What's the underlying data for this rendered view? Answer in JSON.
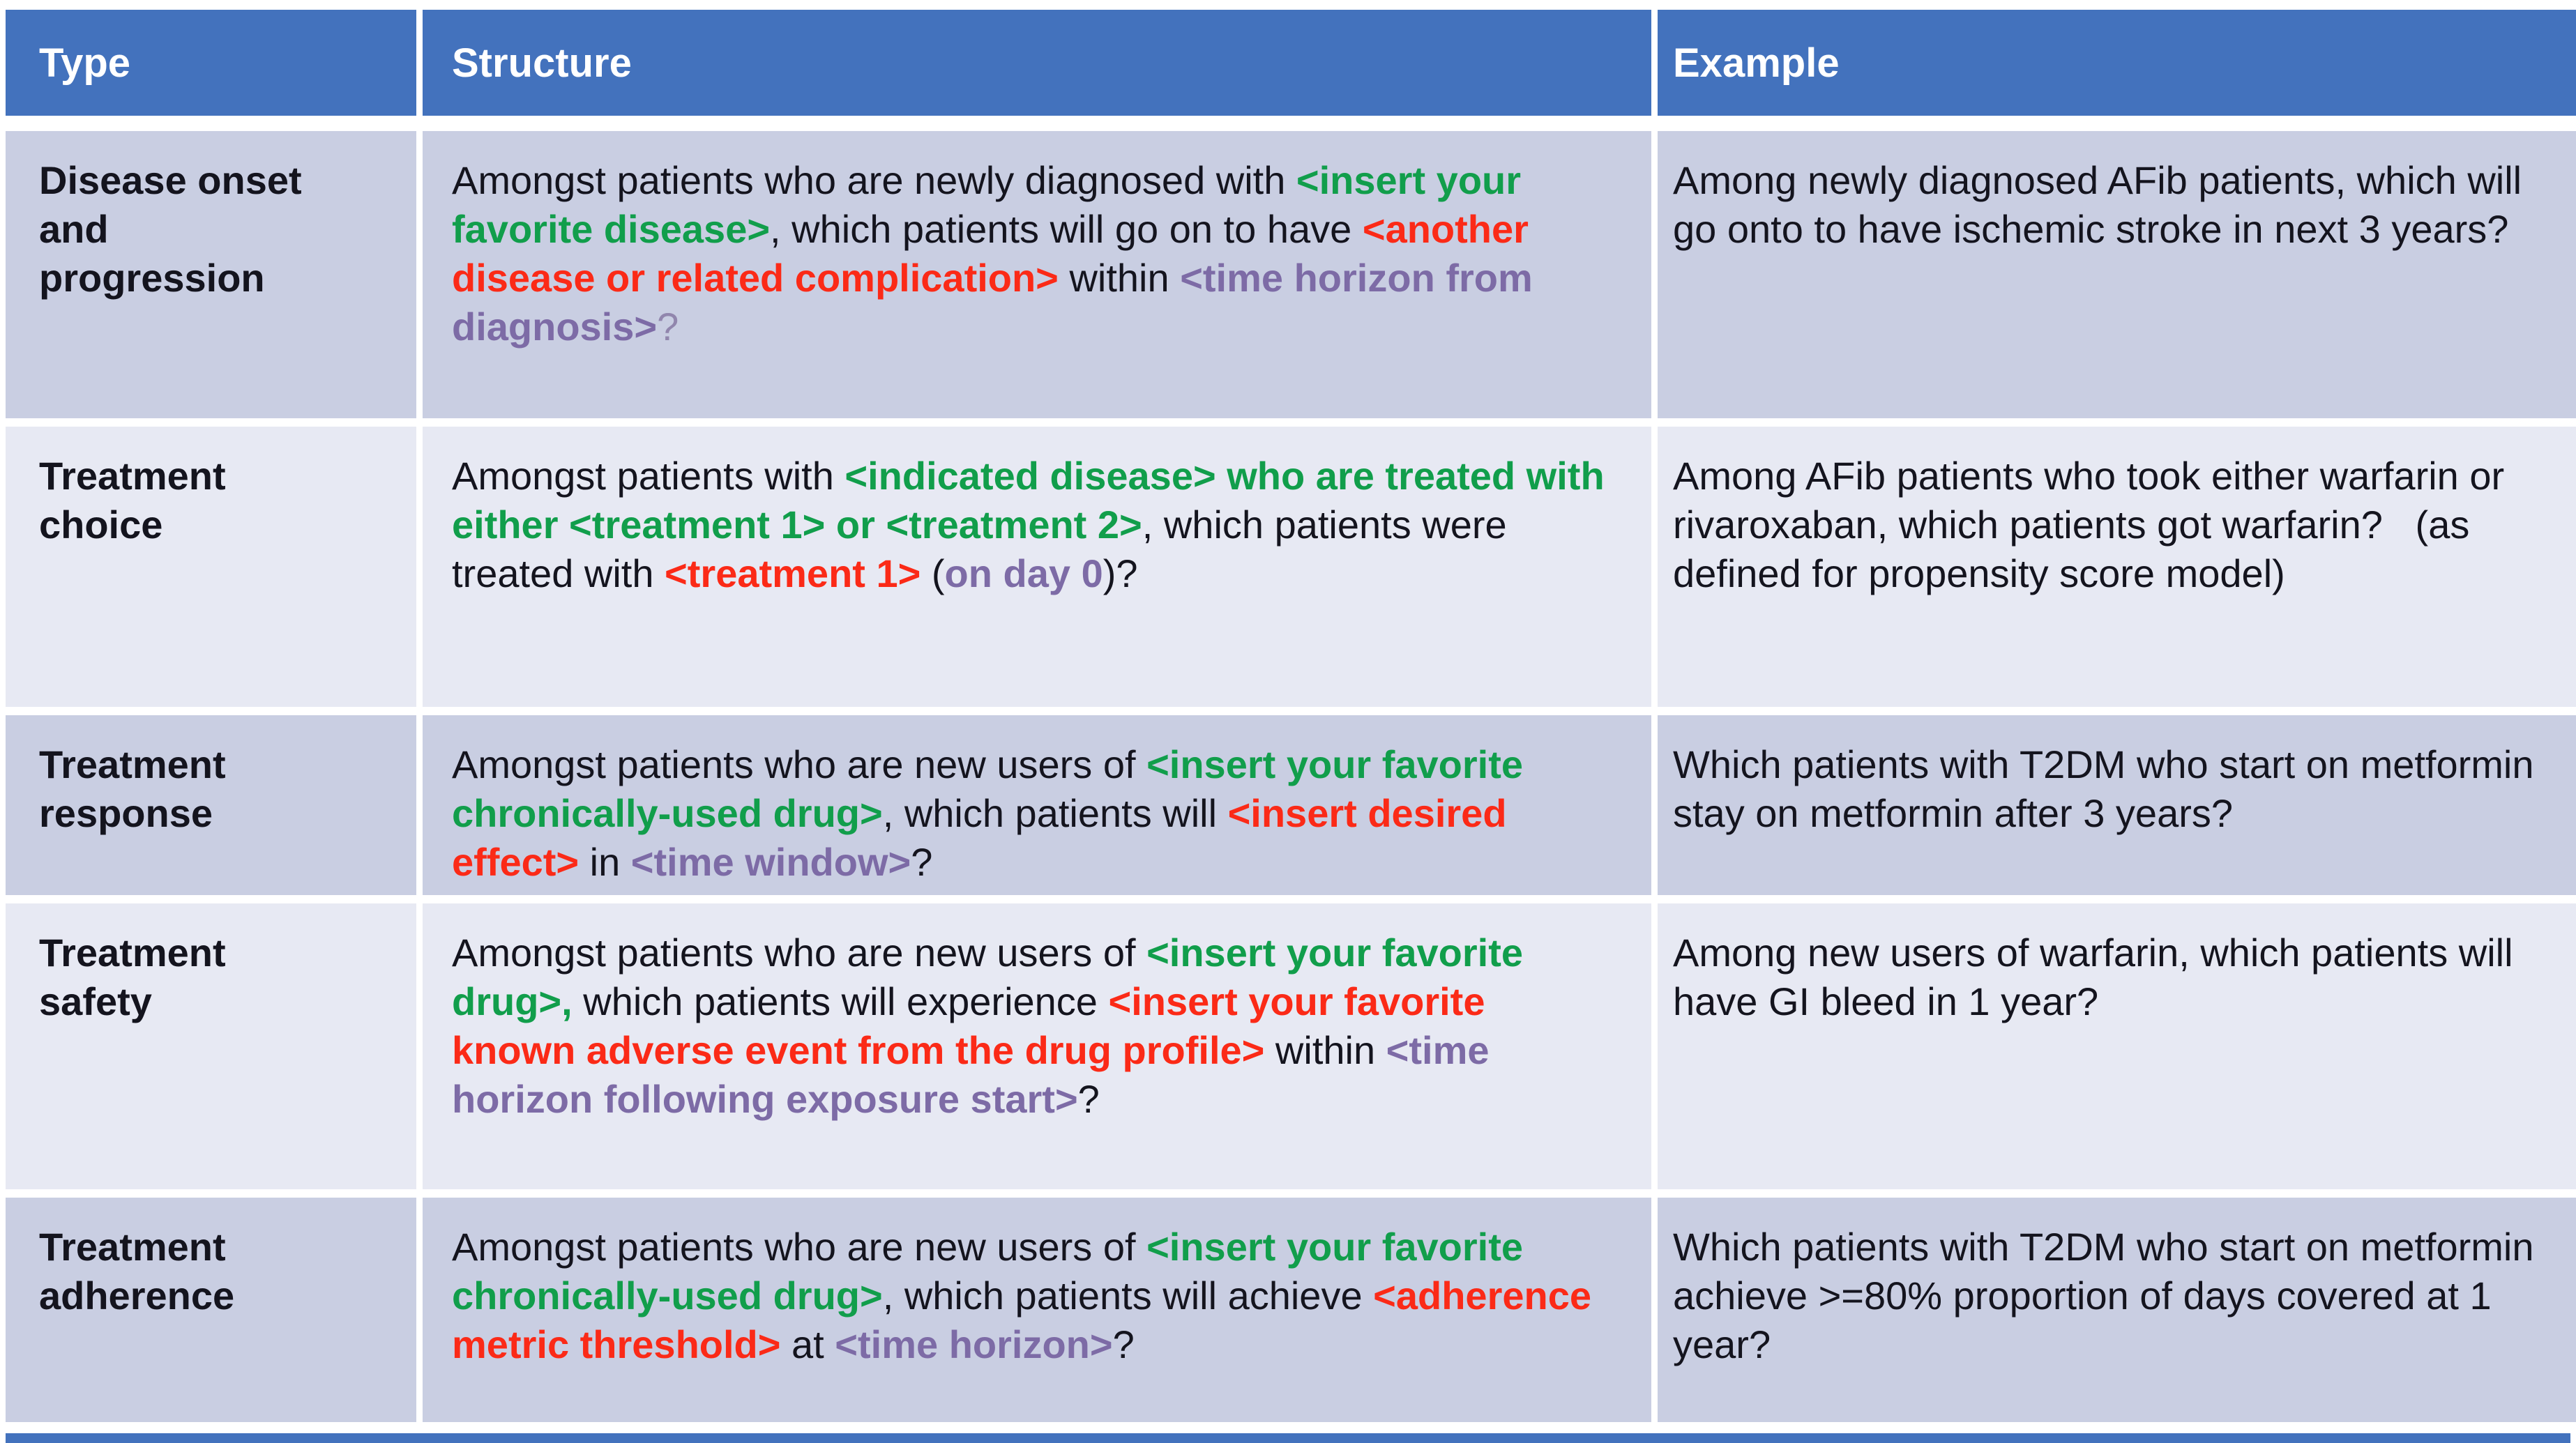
{
  "colors": {
    "header_bg": "#4372bd",
    "band_dark": "#c9cee2",
    "band_light": "#e7e9f3",
    "text": "#14141e",
    "header_text": "#ffffff",
    "green": "#119e4b",
    "red": "#fb2a17",
    "purple": "#7d6ba6",
    "purple_light": "#9186ad"
  },
  "table": {
    "columns": [
      "Type",
      "Structure",
      "Example"
    ],
    "rows": [
      {
        "type": "Disease onset\nand\nprogression",
        "structure": [
          {
            "t": "Amongst patients who are newly diagnosed with ",
            "c": "text"
          },
          {
            "t": "<insert your favorite disease>",
            "c": "green",
            "b": true
          },
          {
            "t": ", which patients will go on to have ",
            "c": "text"
          },
          {
            "t": "<another disease or related complication>",
            "c": "red",
            "b": true
          },
          {
            "t": " within ",
            "c": "text"
          },
          {
            "t": "<time horizon from diagnosis>",
            "c": "purple",
            "b": true
          },
          {
            "t": "?",
            "c": "purple_light"
          }
        ],
        "example": "Among newly diagnosed AFib patients, which will go onto to have ischemic stroke in next 3 years?"
      },
      {
        "type": "Treatment\nchoice",
        "structure": [
          {
            "t": "Amongst patients with ",
            "c": "text"
          },
          {
            "t": "<indicated disease> who are treated with either <treatment 1> or <treatment 2>",
            "c": "green",
            "b": true
          },
          {
            "t": ", which patients were treated with ",
            "c": "text"
          },
          {
            "t": "<treatment 1>",
            "c": "red",
            "b": true
          },
          {
            "t": " (",
            "c": "text"
          },
          {
            "t": "on day 0",
            "c": "purple",
            "b": true
          },
          {
            "t": ")?",
            "c": "text"
          }
        ],
        "example": "Among AFib patients who took either warfarin or rivaroxaban, which patients got warfarin?   (as defined for propensity score model)"
      },
      {
        "type": "Treatment\nresponse",
        "structure": [
          {
            "t": "Amongst patients who are new users of ",
            "c": "text"
          },
          {
            "t": "<insert your favorite chronically-used drug>",
            "c": "green",
            "b": true
          },
          {
            "t": ", which patients will ",
            "c": "text"
          },
          {
            "t": "<insert desired effect>",
            "c": "red",
            "b": true
          },
          {
            "t": " in ",
            "c": "text"
          },
          {
            "t": "<time window>",
            "c": "purple",
            "b": true
          },
          {
            "t": "?",
            "c": "text"
          }
        ],
        "example": "Which patients with T2DM who start on metformin stay on metformin after 3 years?"
      },
      {
        "type": "Treatment\nsafety",
        "structure": [
          {
            "t": "Amongst patients who are new users of ",
            "c": "text"
          },
          {
            "t": "<insert your favorite drug>,",
            "c": "green",
            "b": true
          },
          {
            "t": " which patients will experience ",
            "c": "text"
          },
          {
            "t": "<insert your favorite known adverse event from the drug profile>",
            "c": "red",
            "b": true
          },
          {
            "t": " within ",
            "c": "text"
          },
          {
            "t": "<time horizon following exposure start>",
            "c": "purple",
            "b": true
          },
          {
            "t": "?",
            "c": "text"
          }
        ],
        "example": "Among new users of warfarin, which patients will have GI bleed in 1 year?"
      },
      {
        "type": "Treatment\nadherence",
        "structure": [
          {
            "t": "Amongst patients who are new users of ",
            "c": "text"
          },
          {
            "t": "<insert your favorite chronically-used drug>",
            "c": "green",
            "b": true
          },
          {
            "t": ", which patients will achieve ",
            "c": "text"
          },
          {
            "t": "<adherence metric threshold>",
            "c": "red",
            "b": true
          },
          {
            "t": " at ",
            "c": "text"
          },
          {
            "t": "<time horizon>",
            "c": "purple",
            "b": true
          },
          {
            "t": "?",
            "c": "text"
          }
        ],
        "example": "Which patients with T2DM who start on metformin achieve >=80% proportion of days covered at 1 year?"
      }
    ]
  }
}
